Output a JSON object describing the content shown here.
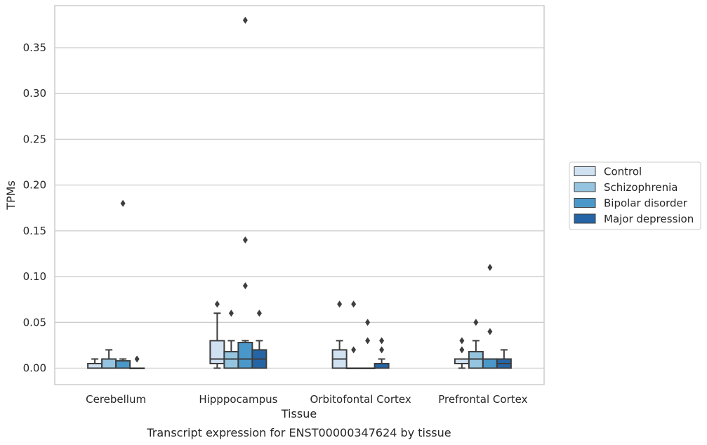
{
  "chart_data": {
    "type": "box",
    "xlabel": "Tissue",
    "ylabel": "TPMs",
    "caption": "Transcript expression for ENST00000347624 by tissue",
    "ylim": [
      -0.018,
      0.396
    ],
    "yticks": [
      0.0,
      0.05,
      0.1,
      0.15,
      0.2,
      0.25,
      0.3,
      0.35
    ],
    "ytick_labels": [
      "0.00",
      "0.05",
      "0.10",
      "0.15",
      "0.20",
      "0.25",
      "0.30",
      "0.35"
    ],
    "grid": "horizontal",
    "legend_position": "right",
    "categories": [
      "Cerebellum",
      "Hipppocampus",
      "Orbitofontal Cortex",
      "Prefrontal Cortex"
    ],
    "series": [
      {
        "name": "Control",
        "color": "#d0e1f2",
        "boxes": [
          {
            "q1": 0.0,
            "median": 0.0,
            "q3": 0.005,
            "whislo": 0.0,
            "whishi": 0.01,
            "fliers": []
          },
          {
            "q1": 0.005,
            "median": 0.01,
            "q3": 0.03,
            "whislo": 0.0,
            "whishi": 0.06,
            "fliers": [
              0.07
            ]
          },
          {
            "q1": 0.0,
            "median": 0.01,
            "q3": 0.02,
            "whislo": 0.0,
            "whishi": 0.03,
            "fliers": [
              0.07
            ]
          },
          {
            "q1": 0.005,
            "median": 0.01,
            "q3": 0.01,
            "whislo": 0.0,
            "whishi": 0.01,
            "fliers": [
              0.02,
              0.03
            ]
          }
        ]
      },
      {
        "name": "Schizophrenia",
        "color": "#94c4df",
        "boxes": [
          {
            "q1": 0.0,
            "median": 0.0,
            "q3": 0.01,
            "whislo": 0.0,
            "whishi": 0.02,
            "fliers": []
          },
          {
            "q1": 0.0,
            "median": 0.01,
            "q3": 0.018,
            "whislo": 0.0,
            "whishi": 0.03,
            "fliers": [
              0.06
            ]
          },
          {
            "q1": 0.0,
            "median": 0.0,
            "q3": 0.0,
            "whislo": 0.0,
            "whishi": 0.0,
            "fliers": [
              0.02,
              0.07
            ]
          },
          {
            "q1": 0.0,
            "median": 0.01,
            "q3": 0.018,
            "whislo": 0.0,
            "whishi": 0.03,
            "fliers": [
              0.05
            ]
          }
        ]
      },
      {
        "name": "Bipolar disorder",
        "color": "#4a98c9",
        "boxes": [
          {
            "q1": 0.0,
            "median": 0.0,
            "q3": 0.008,
            "whislo": 0.0,
            "whishi": 0.01,
            "fliers": [
              0.18
            ]
          },
          {
            "q1": 0.0,
            "median": 0.01,
            "q3": 0.028,
            "whislo": 0.0,
            "whishi": 0.03,
            "fliers": [
              0.09,
              0.14,
              0.38
            ]
          },
          {
            "q1": 0.0,
            "median": 0.0,
            "q3": 0.0,
            "whislo": 0.0,
            "whishi": 0.0,
            "fliers": [
              0.03,
              0.05
            ]
          },
          {
            "q1": 0.0,
            "median": 0.0,
            "q3": 0.01,
            "whislo": 0.0,
            "whishi": 0.01,
            "fliers": [
              0.04,
              0.11
            ]
          }
        ]
      },
      {
        "name": "Major depression",
        "color": "#2565a6",
        "boxes": [
          {
            "q1": 0.0,
            "median": 0.0,
            "q3": 0.0,
            "whislo": 0.0,
            "whishi": 0.0,
            "fliers": [
              0.01
            ]
          },
          {
            "q1": 0.0,
            "median": 0.01,
            "q3": 0.02,
            "whislo": 0.0,
            "whishi": 0.03,
            "fliers": [
              0.06
            ]
          },
          {
            "q1": 0.0,
            "median": 0.0,
            "q3": 0.005,
            "whislo": 0.0,
            "whishi": 0.01,
            "fliers": [
              0.02,
              0.03
            ]
          },
          {
            "q1": 0.0,
            "median": 0.005,
            "q3": 0.01,
            "whislo": 0.0,
            "whishi": 0.02,
            "fliers": []
          }
        ]
      }
    ]
  }
}
